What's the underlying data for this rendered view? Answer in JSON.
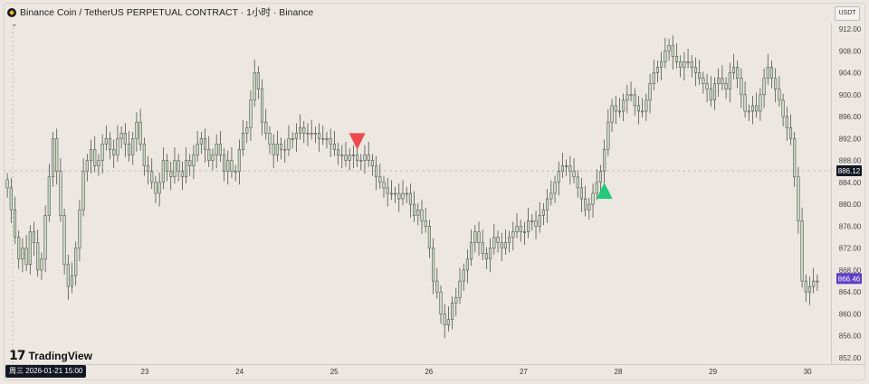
{
  "header": {
    "title": "Binance Coin / TetherUS PERPETUAL CONTRACT · 1小时 · Binance",
    "currency_button": "USDT",
    "collapse_icon": "chevron-down-icon"
  },
  "branding": {
    "logo_text": "TradingView",
    "logo_icon": "tradingview-logo-icon"
  },
  "crosshair_date": "周三  2026-01-21   15:00",
  "colors": {
    "background": "#ece8e1",
    "candle_up": "#c9dcc3",
    "candle_down": "#c9dcc3",
    "wick": "#3c3c3c",
    "sell_marker": "#f0484f",
    "buy_marker": "#26c97a",
    "current_price_tag": "#131722",
    "last_price_tag": "#5b3cc4"
  },
  "chart_data": {
    "type": "candlestick",
    "symbol": "BNB/USDT Perpetual",
    "interval": "1小时",
    "y_ticks": [
      912,
      908,
      904,
      900,
      896,
      892,
      888,
      884,
      880,
      876,
      872,
      868,
      864,
      860,
      856,
      852
    ],
    "ylim": [
      851,
      914
    ],
    "x_ticks": [
      "23",
      "24",
      "25",
      "26",
      "27",
      "28",
      "29",
      "30"
    ],
    "reference_price": "886.12",
    "last_price": "866.46",
    "close_path": [
      883,
      879,
      874,
      870,
      872,
      869,
      875,
      873,
      868,
      870,
      878,
      885,
      892,
      886,
      878,
      869,
      865,
      867,
      872,
      879,
      886,
      888,
      890,
      887,
      888,
      891,
      892,
      890,
      889,
      892,
      893,
      891,
      889,
      892,
      895,
      891,
      887,
      886,
      884,
      882,
      884,
      888,
      886,
      885,
      888,
      886,
      885,
      888,
      887,
      889,
      891,
      892,
      890,
      888,
      889,
      891,
      889,
      886,
      888,
      886,
      886,
      890,
      893,
      894,
      899,
      904,
      901,
      895,
      893,
      891,
      889,
      891,
      890,
      890,
      892,
      892,
      893,
      894,
      893,
      893,
      893,
      893,
      892,
      892,
      892,
      891,
      890,
      889,
      889,
      888,
      889,
      889,
      888,
      888,
      889,
      888,
      887,
      885,
      884,
      883,
      882,
      882,
      882,
      881,
      882,
      882,
      880,
      878,
      879,
      877,
      876,
      872,
      866,
      864,
      860,
      858,
      859,
      862,
      863,
      866,
      868,
      870,
      873,
      875,
      873,
      871,
      870,
      872,
      874,
      873,
      872,
      873,
      874,
      875,
      876,
      875,
      875,
      877,
      877,
      876,
      878,
      879,
      881,
      882,
      884,
      886,
      887,
      887,
      886,
      885,
      883,
      881,
      879,
      880,
      882,
      884,
      886,
      890,
      895,
      898,
      897,
      897,
      899,
      900,
      900,
      898,
      897,
      897,
      899,
      902,
      904,
      905,
      906,
      908,
      909,
      907,
      906,
      905,
      906,
      906,
      905,
      904,
      903,
      902,
      901,
      899,
      902,
      903,
      902,
      901,
      904,
      905,
      903,
      900,
      897,
      897,
      898,
      897,
      900,
      903,
      905,
      903,
      901,
      899,
      896,
      894,
      892,
      885,
      877,
      866,
      864,
      865,
      866,
      866
    ],
    "markers": [
      {
        "type": "sell",
        "index": 92,
        "price": 891.5
      },
      {
        "type": "buy",
        "index": 157,
        "price": 882.5
      }
    ]
  }
}
